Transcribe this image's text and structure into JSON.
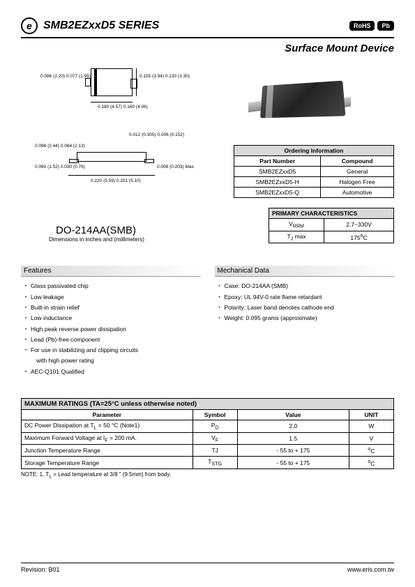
{
  "header": {
    "logo_text": "e",
    "title": "SMB2EZxxD5 SERIES",
    "badge1": "RoHS",
    "badge2": "Pb",
    "subtitle": "Surface Mount Device"
  },
  "diagram": {
    "labels": {
      "a": "0.086 (2.20)\n0.077 (1.95)",
      "b": "0.155 (3.94)\n0.130 (3.30)",
      "c": "0.180 (4.57)\n0.160 (4.06)",
      "d": "0.012 (0.305)\n0.006 (0.152)",
      "e": "0.096 (2.44)\n0.084 (2.13)",
      "f": "0.060 (1.52)\n0.030 (0.76)",
      "g": "0.008 (0.203)\nMax.",
      "h": "0.220 (5.59)\n0.201 (5.10)"
    },
    "package_name": "DO-214AA(SMB)",
    "dim_note": "Dimensions in inches and (millimeters)"
  },
  "ordering": {
    "header": "Ordering Information",
    "cols": [
      "Part Number",
      "Compound"
    ],
    "rows": [
      [
        "SMB2EZxxD5",
        "General"
      ],
      [
        "SMB2EZxxD5-H",
        "Halogen Free"
      ],
      [
        "SMB2EZxxD5-Q",
        "Automotive"
      ]
    ]
  },
  "primary": {
    "header": "PRIMARY CHARACTERISTICS",
    "rows": [
      [
        "V",
        "RRM",
        "2.7~330V"
      ],
      [
        "T",
        "J",
        " max",
        "175",
        "o",
        "C"
      ]
    ],
    "r1_label": "V",
    "r1_sub": "RRM",
    "r1_val": "2.7~330V",
    "r2_label": "T",
    "r2_sub": "J",
    "r2_suffix": " max",
    "r2_val": "175",
    "r2_unit_sup": "o",
    "r2_unit": "C"
  },
  "features": {
    "header": "Features",
    "items": [
      "Glass passivated chip",
      "Low leakage",
      "Built-in strain relief",
      "Low inductance",
      "High peak reverse power dissipation",
      "Lead (Pb)-free component",
      "For use in stabilizing and clipping circuits",
      "with high power rating",
      "AEC-Q101 Qualified"
    ]
  },
  "mechanical": {
    "header": "Mechanical Data",
    "items": [
      "Case: DO-214AA (SMB)",
      "Epoxy: UL 94V-0 rate flame retardant",
      "Polarity: Laser band denotes cathode end",
      "Weight: 0.095 grams (approximate)"
    ]
  },
  "maxratings": {
    "header": "MAXIMUM RATINGS (TA=25°C unless otherwise noted)",
    "cols": [
      "Parameter",
      "Symbol",
      "Value",
      "UNIT"
    ],
    "rows": [
      {
        "p": "DC Power Dissipation at T<sub>L</sub> = 50 °C (Note1)",
        "s": "P<sub>D</sub>",
        "v": "2.0",
        "u": "W"
      },
      {
        "p": "Maximum Forward Voltage at I<sub>F</sub> = 200 mA.",
        "s": "V<sub>F</sub>",
        "v": "1.5",
        "u": "V"
      },
      {
        "p": "Junction Temperature Range",
        "s": "TJ",
        "v": "- 55 to + 175",
        "u": "<sup>o</sup>C"
      },
      {
        "p": "Storage Temperature Range",
        "s": "T<sub>STG</sub>",
        "v": "- 55 to + 175",
        "u": "<sup>o</sup>C"
      }
    ],
    "note": "NOTE: 1. T<sub>L</sub> = Lead temperature at 3/8 \" (9.5mm) from body."
  },
  "footer": {
    "revision": "Revision: B01",
    "url": "www.eris.com.tw"
  }
}
